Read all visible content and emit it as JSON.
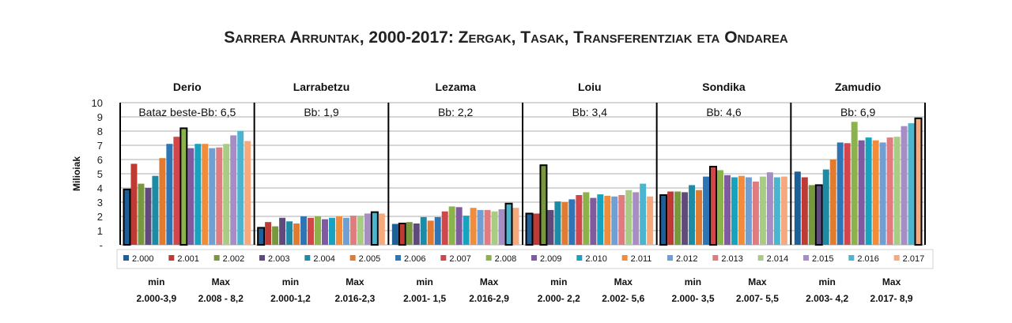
{
  "chart_data": {
    "type": "bar",
    "title": "Sarrera Arruntak, 2000-2017: Zergak, Tasak, Transferentziak eta Ondarea",
    "ylabel": "Milioiak",
    "ylim": [
      0,
      10
    ],
    "yticks": [
      "-",
      "1",
      "2",
      "3",
      "4",
      "5",
      "6",
      "7",
      "8",
      "9",
      "10"
    ],
    "grid": true,
    "legend_placement": "bottom",
    "series_names": [
      "2.000",
      "2.001",
      "2.002",
      "2.003",
      "2.004",
      "2.005",
      "2.006",
      "2.007",
      "2.008",
      "2.009",
      "2.010",
      "2.011",
      "2.012",
      "2.013",
      "2.014",
      "2.015",
      "2.016",
      "2.017"
    ],
    "colors": [
      "#1f5f97",
      "#be3a34",
      "#77983c",
      "#604a7b",
      "#1e8ba6",
      "#e27b2f",
      "#2e75b6",
      "#d0464a",
      "#8cb24b",
      "#7f5a9e",
      "#17a3bd",
      "#f08c3a",
      "#6f9fd3",
      "#e07b7f",
      "#a8cc84",
      "#a68dc3",
      "#4bb5cf",
      "#f5a97c"
    ],
    "panels": [
      {
        "name": "Derio",
        "avg_label": "Bataz beste-Bb: 6,5",
        "min_label": "min",
        "min_value": "2.000-3,9",
        "max_label": "Max",
        "max_value": "2.008 - 8,2",
        "min_index": 0,
        "max_index": 8,
        "values": [
          3.9,
          5.7,
          4.3,
          4.0,
          4.85,
          6.1,
          7.1,
          7.6,
          8.2,
          6.8,
          7.1,
          7.1,
          6.8,
          6.85,
          7.1,
          7.7,
          8.0,
          7.3
        ]
      },
      {
        "name": "Larrabetzu",
        "avg_label": "Bb: 1,9",
        "min_label": "min",
        "min_value": "2.000-1,2",
        "max_label": "Max",
        "max_value": "2.016-2,3",
        "min_index": 0,
        "max_index": 16,
        "values": [
          1.2,
          1.6,
          1.3,
          1.9,
          1.65,
          1.5,
          2.0,
          1.9,
          2.0,
          1.8,
          1.9,
          2.0,
          1.9,
          2.05,
          2.05,
          2.2,
          2.3,
          2.2
        ]
      },
      {
        "name": "Lezama",
        "avg_label": "Bb: 2,2",
        "min_label": "min",
        "min_value": "2.001- 1,5",
        "max_label": "Max",
        "max_value": "2.016-2,9",
        "min_index": 1,
        "max_index": 16,
        "values": [
          1.47,
          1.5,
          1.6,
          1.5,
          1.95,
          1.7,
          1.95,
          2.35,
          2.7,
          2.65,
          2.05,
          2.6,
          2.45,
          2.45,
          2.35,
          2.5,
          2.9,
          2.6
        ]
      },
      {
        "name": "Loiu",
        "avg_label": "Bb: 3,4",
        "min_label": "min",
        "min_value": "2.000- 2,2",
        "max_label": "Max",
        "max_value": "2.002- 5,6",
        "min_index": 0,
        "max_index": 2,
        "values": [
          2.2,
          2.2,
          5.6,
          2.45,
          3.05,
          3.0,
          3.2,
          3.5,
          3.7,
          3.3,
          3.55,
          3.45,
          3.4,
          3.5,
          3.85,
          3.7,
          4.3,
          3.4
        ]
      },
      {
        "name": "Sondika",
        "avg_label": "Bb: 4,6",
        "min_label": "min",
        "min_value": "2.000- 3,5",
        "max_label": "Max",
        "max_value": "2.007- 5,5",
        "min_index": 0,
        "max_index": 7,
        "values": [
          3.5,
          3.75,
          3.75,
          3.7,
          4.2,
          3.85,
          4.8,
          5.5,
          5.25,
          4.9,
          4.75,
          4.85,
          4.75,
          4.45,
          4.8,
          5.1,
          4.75,
          4.8
        ]
      },
      {
        "name": "Zamudio",
        "avg_label": "Bb: 6,9",
        "min_label": "min",
        "min_value": "2.003- 4,2",
        "max_label": "Max",
        "max_value": "2.017- 8,9",
        "min_index": 3,
        "max_index": 17,
        "values": [
          5.15,
          4.75,
          4.2,
          4.2,
          5.3,
          6.0,
          7.2,
          7.15,
          8.65,
          7.35,
          7.55,
          7.35,
          7.2,
          7.55,
          7.6,
          8.35,
          8.55,
          8.9
        ]
      }
    ]
  }
}
